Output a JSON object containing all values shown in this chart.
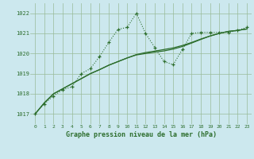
{
  "title": "Graphe pression niveau de la mer (hPa)",
  "bg_color": "#cce8ee",
  "grid_color": "#99bb99",
  "line_color": "#2d6e2d",
  "xlim": [
    -0.5,
    23.5
  ],
  "ylim": [
    1016.5,
    1022.5
  ],
  "yticks": [
    1017,
    1018,
    1019,
    1020,
    1021,
    1022
  ],
  "xticks": [
    0,
    1,
    2,
    3,
    4,
    5,
    6,
    7,
    8,
    9,
    10,
    11,
    12,
    13,
    14,
    15,
    16,
    17,
    18,
    19,
    20,
    21,
    22,
    23
  ],
  "series1_x": [
    0,
    1,
    2,
    3,
    4,
    5,
    6,
    7,
    8,
    9,
    10,
    11,
    12,
    13,
    14,
    15,
    16,
    17,
    18,
    19,
    20,
    21,
    22,
    23
  ],
  "series1_y": [
    1017.0,
    1017.5,
    1017.9,
    1018.2,
    1018.35,
    1019.0,
    1019.25,
    1019.85,
    1020.55,
    1021.2,
    1021.3,
    1022.0,
    1021.0,
    1020.3,
    1019.6,
    1019.45,
    1020.2,
    1021.0,
    1021.05,
    1021.05,
    1021.05,
    1021.05,
    1021.15,
    1021.3
  ],
  "series2_x": [
    0,
    1,
    2,
    3,
    4,
    5,
    6,
    7,
    8,
    9,
    10,
    11,
    12,
    13,
    14,
    15,
    16,
    17,
    18,
    19,
    20,
    21,
    22,
    23
  ],
  "series2_y": [
    1017.0,
    1017.55,
    1018.0,
    1018.25,
    1018.5,
    1018.75,
    1019.0,
    1019.2,
    1019.42,
    1019.6,
    1019.78,
    1019.95,
    1020.05,
    1020.12,
    1020.2,
    1020.28,
    1020.4,
    1020.55,
    1020.72,
    1020.87,
    1021.0,
    1021.1,
    1021.15,
    1021.22
  ],
  "series3_x": [
    0,
    1,
    2,
    3,
    4,
    5,
    6,
    7,
    8,
    9,
    10,
    11,
    12,
    13,
    14,
    15,
    16,
    17,
    18,
    19,
    20,
    21,
    22,
    23
  ],
  "series3_y": [
    1017.0,
    1017.55,
    1018.0,
    1018.25,
    1018.5,
    1018.75,
    1019.0,
    1019.2,
    1019.42,
    1019.6,
    1019.78,
    1019.93,
    1020.0,
    1020.07,
    1020.13,
    1020.22,
    1020.35,
    1020.52,
    1020.7,
    1020.87,
    1021.0,
    1021.1,
    1021.15,
    1021.22
  ]
}
